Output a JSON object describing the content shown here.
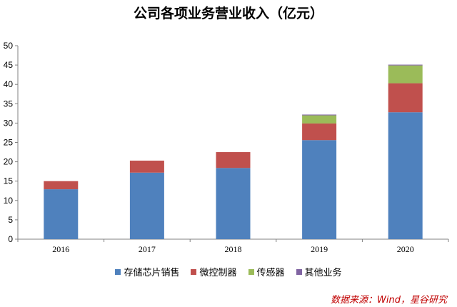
{
  "chart_data": {
    "type": "bar",
    "stacked": true,
    "title": "公司各项业务营业收入（亿元）",
    "categories": [
      "2016",
      "2017",
      "2018",
      "2019",
      "2020"
    ],
    "series": [
      {
        "name": "存储芯片销售",
        "color": "#4f81bd",
        "values": [
          12.9,
          17.2,
          18.4,
          25.6,
          32.8
        ]
      },
      {
        "name": "微控制器",
        "color": "#c0504d",
        "values": [
          2.1,
          3.1,
          4.1,
          4.3,
          7.5
        ]
      },
      {
        "name": "传感器",
        "color": "#9bbb59",
        "values": [
          0.0,
          0.0,
          0.0,
          2.1,
          4.6
        ]
      },
      {
        "name": "其他业务",
        "color": "#8064a2",
        "values": [
          0.0,
          0.0,
          0.0,
          0.2,
          0.2
        ]
      }
    ],
    "ylim": [
      0,
      50
    ],
    "yticks": [
      "0",
      "5",
      "10",
      "15",
      "20",
      "25",
      "30",
      "35",
      "40",
      "45",
      "50"
    ],
    "grid": false,
    "legend_position": "bottom"
  },
  "source_text": "数据来源：Wind，星谷研究"
}
